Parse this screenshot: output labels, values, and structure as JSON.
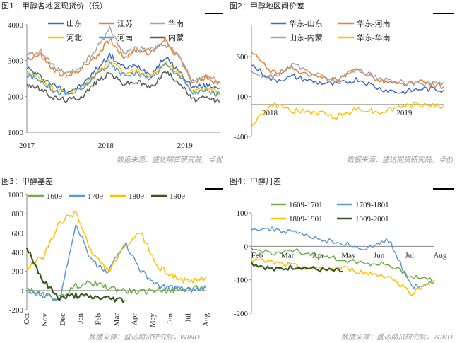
{
  "chart_data": [
    {
      "type": "line",
      "title": "图1：甲醇各地区现货价（低）",
      "source": "数据来源：盛达期货研究院，卓创",
      "x_ticks": [
        "2017",
        "2018",
        "2019"
      ],
      "y_ticks": [
        "1000",
        "2000",
        "3000",
        "4000"
      ],
      "ylim": [
        1000,
        4000
      ],
      "x": [
        "2017-01",
        "2017-03",
        "2017-05",
        "2017-07",
        "2017-09",
        "2017-11",
        "2018-01",
        "2018-03",
        "2018-05",
        "2018-07",
        "2018-09",
        "2018-11",
        "2019-01",
        "2019-03",
        "2019-05"
      ],
      "series": [
        {
          "name": "山东",
          "color": "#3d6cc4",
          "values": [
            2800,
            2550,
            2300,
            2150,
            2300,
            2750,
            3150,
            2800,
            2850,
            2600,
            3100,
            2700,
            2250,
            2300,
            2250
          ]
        },
        {
          "name": "江苏",
          "color": "#ed7d31",
          "values": [
            3050,
            3150,
            2700,
            2550,
            2800,
            3100,
            3600,
            3100,
            3300,
            3200,
            3600,
            3100,
            2400,
            2500,
            2350
          ]
        },
        {
          "name": "华南",
          "color": "#a5a5a5",
          "values": [
            3150,
            3250,
            2800,
            2600,
            2850,
            3300,
            3900,
            3200,
            3350,
            3300,
            3450,
            3100,
            2400,
            2550,
            2400
          ]
        },
        {
          "name": "河北",
          "color": "#ffc000",
          "values": [
            2700,
            2500,
            2200,
            2100,
            2250,
            2650,
            3000,
            2650,
            2700,
            2550,
            2950,
            2650,
            2150,
            2200,
            2100
          ]
        },
        {
          "name": "河南",
          "color": "#5b9bd5",
          "values": [
            2600,
            2450,
            2150,
            2050,
            2200,
            2600,
            2900,
            2600,
            2650,
            2500,
            2900,
            2600,
            2100,
            2150,
            2050
          ]
        },
        {
          "name": "内蒙",
          "color": "#595959",
          "values": [
            2350,
            2200,
            1950,
            1900,
            2000,
            2400,
            2650,
            2350,
            2400,
            2250,
            2700,
            2400,
            1900,
            1950,
            1850
          ]
        }
      ]
    },
    {
      "type": "line",
      "title": "图2：甲醇地区间价差",
      "x_ticks": [
        "2018",
        "2019"
      ],
      "y_ticks": [
        "-400",
        "100",
        "600"
      ],
      "ylim": [
        -400,
        1000
      ],
      "x": [
        "2017-11",
        "2018-01",
        "2018-03",
        "2018-05",
        "2018-07",
        "2018-09",
        "2018-11",
        "2019-01",
        "2019-03",
        "2019-05"
      ],
      "series": [
        {
          "name": "华东-山东",
          "color": "#3d6cc4",
          "values": [
            500,
            300,
            350,
            280,
            250,
            320,
            200,
            150,
            200,
            180
          ]
        },
        {
          "name": "华东-河南",
          "color": "#ed7d31",
          "values": [
            650,
            400,
            450,
            350,
            300,
            450,
            300,
            250,
            280,
            220
          ]
        },
        {
          "name": "山东-内蒙",
          "color": "#a5a5a5",
          "values": [
            400,
            350,
            500,
            380,
            300,
            450,
            320,
            280,
            260,
            280
          ]
        },
        {
          "name": "华东-华南",
          "color": "#ffc000",
          "values": [
            -250,
            0,
            -80,
            -100,
            -150,
            -50,
            -100,
            -20,
            0,
            -20
          ]
        }
      ]
    },
    {
      "type": "line",
      "title": "图3：甲醇基差",
      "source": "数据来源：盛达期货研究院，WIND",
      "x_ticks": [
        "Oct",
        "Nov",
        "Dec",
        "Jan",
        "Feb",
        "Mar",
        "Apr",
        "May",
        "Jun",
        "Jul",
        "Aug"
      ],
      "y_ticks": [
        "-200",
        "0",
        "200",
        "400",
        "600",
        "800",
        "1000"
      ],
      "ylim": [
        -200,
        1000
      ],
      "x": [
        "Oct",
        "Nov",
        "Dec",
        "Jan",
        "Feb",
        "Mar",
        "Apr",
        "May",
        "Jun",
        "Jul",
        "Aug",
        "Sep"
      ],
      "series": [
        {
          "name": "1609",
          "color": "#70ad47",
          "values": [
            20,
            -50,
            -80,
            50,
            80,
            30,
            0,
            -20,
            10,
            0,
            20,
            30
          ]
        },
        {
          "name": "1709",
          "color": "#5b9bd5",
          "values": [
            -20,
            -50,
            -100,
            700,
            300,
            200,
            500,
            200,
            50,
            30,
            0,
            30
          ]
        },
        {
          "name": "1809",
          "color": "#ffc000",
          "values": [
            230,
            350,
            700,
            820,
            380,
            200,
            450,
            600,
            250,
            150,
            80,
            150
          ]
        },
        {
          "name": "1909",
          "color": "#375623",
          "values": [
            450,
            100,
            -80,
            -50,
            -70,
            -80,
            -100,
            null,
            null,
            null,
            null,
            null
          ]
        }
      ]
    },
    {
      "type": "line",
      "title": "图4：甲醇月差",
      "source": "数据来源：盛达期货研究院，WIND",
      "x_ticks": [
        "Feb",
        "Mar",
        "Apr",
        "May",
        "Jun",
        "Jul",
        "Aug"
      ],
      "y_ticks": [
        "-200",
        "-100",
        "0",
        "100"
      ],
      "ylim": [
        -200,
        100
      ],
      "x": [
        "Jan",
        "Feb",
        "Mar",
        "Apr",
        "May",
        "Jun",
        "Jul",
        "Aug",
        "Sep"
      ],
      "series": [
        {
          "name": "1609-1701",
          "color": "#70ad47",
          "values": [
            -10,
            -20,
            -15,
            -30,
            -40,
            -50,
            -55,
            -90,
            -100
          ]
        },
        {
          "name": "1709-1801",
          "color": "#5b9bd5",
          "values": [
            55,
            50,
            40,
            20,
            10,
            -10,
            20,
            -120,
            -110
          ]
        },
        {
          "name": "1809-1901",
          "color": "#ffc000",
          "values": [
            -40,
            -50,
            -60,
            -70,
            -65,
            -80,
            -90,
            -140,
            -100
          ]
        },
        {
          "name": "1909-2001",
          "color": "#375623",
          "values": [
            -50,
            -70,
            -60,
            -70,
            -75,
            null,
            null,
            null,
            null
          ]
        }
      ]
    }
  ]
}
